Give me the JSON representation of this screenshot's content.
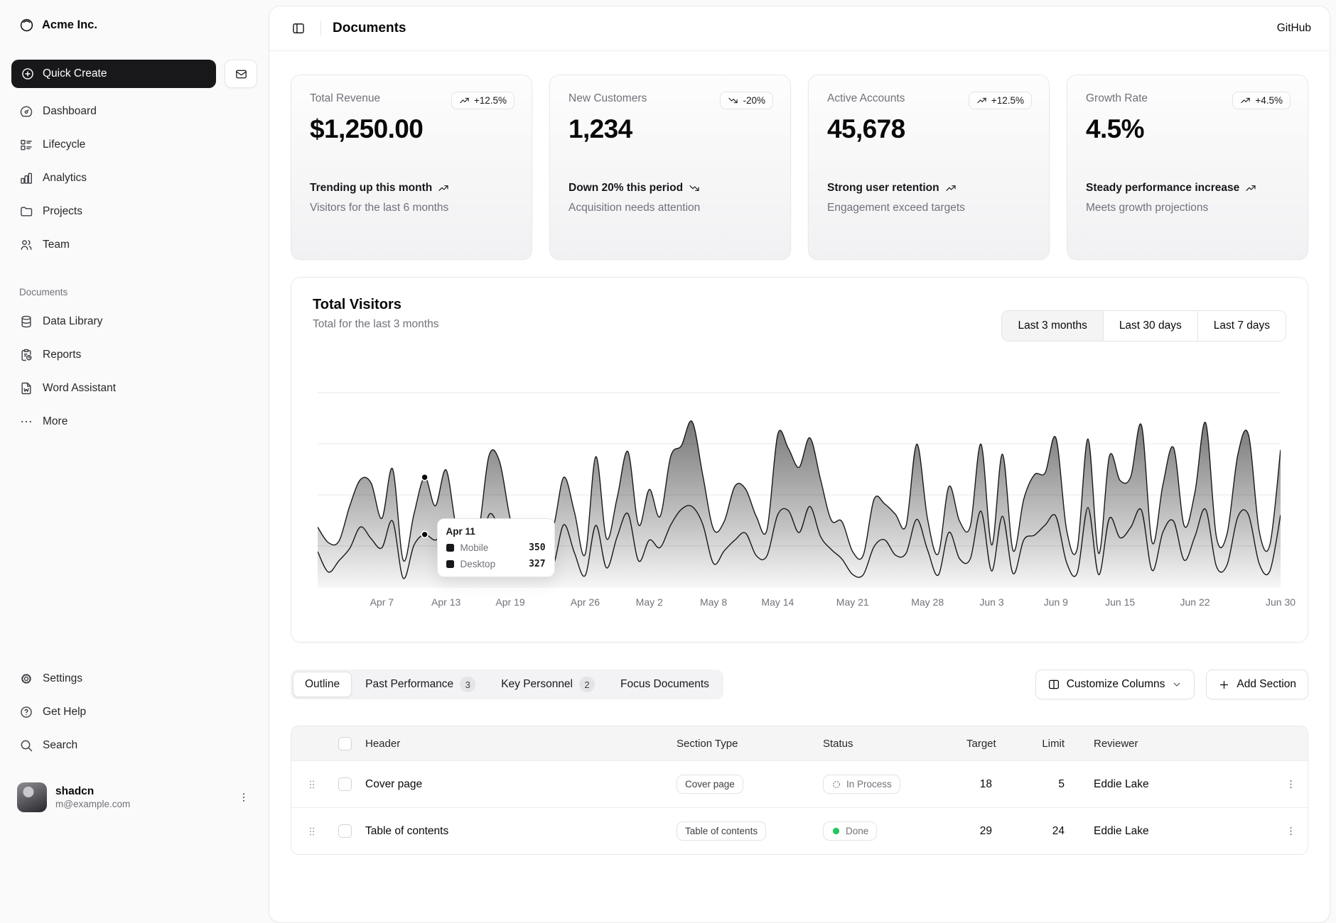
{
  "brand": {
    "name": "Acme Inc."
  },
  "sidebar": {
    "quick_create": "Quick Create",
    "nav": [
      {
        "label": "Dashboard"
      },
      {
        "label": "Lifecycle"
      },
      {
        "label": "Analytics"
      },
      {
        "label": "Projects"
      },
      {
        "label": "Team"
      }
    ],
    "documents": {
      "heading": "Documents",
      "items": [
        {
          "label": "Data Library"
        },
        {
          "label": "Reports"
        },
        {
          "label": "Word Assistant"
        },
        {
          "label": "More"
        }
      ]
    },
    "footer_nav": [
      {
        "label": "Settings"
      },
      {
        "label": "Get Help"
      },
      {
        "label": "Search"
      }
    ],
    "user": {
      "name": "shadcn",
      "email": "m@example.com"
    }
  },
  "header": {
    "title": "Documents",
    "github_label": "GitHub"
  },
  "stat_cards": [
    {
      "title": "Total Revenue",
      "value": "$1,250.00",
      "badge": "+12.5%",
      "trend": "up",
      "footer_title": "Trending up this month",
      "footer_desc": "Visitors for the last 6 months"
    },
    {
      "title": "New Customers",
      "value": "1,234",
      "badge": "-20%",
      "trend": "down",
      "footer_title": "Down 20% this period",
      "footer_desc": "Acquisition needs attention"
    },
    {
      "title": "Active Accounts",
      "value": "45,678",
      "badge": "+12.5%",
      "trend": "up",
      "footer_title": "Strong user retention",
      "footer_desc": "Engagement exceed targets"
    },
    {
      "title": "Growth Rate",
      "value": "4.5%",
      "badge": "+4.5%",
      "trend": "up",
      "footer_title": "Steady performance increase",
      "footer_desc": "Meets growth projections"
    }
  ],
  "visitors": {
    "title": "Total Visitors",
    "subtitle": "Total for the last 3 months",
    "ranges": [
      {
        "label": "Last 3 months",
        "active": true
      },
      {
        "label": "Last 30 days",
        "active": false
      },
      {
        "label": "Last 7 days",
        "active": false
      }
    ]
  },
  "chart_data": {
    "type": "area",
    "stacked": true,
    "title": "Total Visitors",
    "x_range": [
      "Apr 1",
      "Jun 30"
    ],
    "ylim": [
      0,
      1230
    ],
    "grid": "horizontal",
    "highlight_index": 10,
    "x_ticks": [
      {
        "index": 6,
        "label": "Apr 7"
      },
      {
        "index": 12,
        "label": "Apr 13"
      },
      {
        "index": 18,
        "label": "Apr 19"
      },
      {
        "index": 25,
        "label": "Apr 26"
      },
      {
        "index": 31,
        "label": "May 2"
      },
      {
        "index": 37,
        "label": "May 8"
      },
      {
        "index": 43,
        "label": "May 14"
      },
      {
        "index": 50,
        "label": "May 21"
      },
      {
        "index": 57,
        "label": "May 28"
      },
      {
        "index": 63,
        "label": "Jun 3"
      },
      {
        "index": 69,
        "label": "Jun 9"
      },
      {
        "index": 75,
        "label": "Jun 15"
      },
      {
        "index": 82,
        "label": "Jun 22"
      },
      {
        "index": 90,
        "label": "Jun 30"
      }
    ],
    "series": [
      {
        "name": "Desktop",
        "values": [
          222,
          97,
          167,
          242,
          373,
          301,
          245,
          409,
          59,
          261,
          327,
          292,
          342,
          137,
          120,
          138,
          446,
          364,
          243,
          89,
          137,
          224,
          138,
          387,
          215,
          75,
          383,
          122,
          315,
          454,
          165,
          293,
          247,
          385,
          481,
          498,
          388,
          149,
          227,
          293,
          335,
          197,
          197,
          448,
          473,
          338,
          499,
          315,
          235,
          177,
          82,
          81,
          252,
          294,
          201,
          213,
          420,
          233,
          78,
          340,
          178,
          178,
          470,
          103,
          439,
          88,
          294,
          323,
          385,
          438,
          155,
          92,
          492,
          81,
          426,
          307,
          371,
          475,
          107,
          341,
          408,
          169,
          317,
          480,
          132,
          141,
          434,
          448,
          149,
          103,
          446
        ]
      },
      {
        "name": "Mobile",
        "values": [
          150,
          180,
          120,
          260,
          290,
          340,
          180,
          320,
          110,
          190,
          350,
          210,
          380,
          220,
          170,
          190,
          360,
          410,
          180,
          150,
          200,
          170,
          230,
          290,
          250,
          130,
          420,
          180,
          240,
          380,
          220,
          310,
          190,
          420,
          390,
          520,
          300,
          210,
          180,
          330,
          270,
          240,
          160,
          490,
          380,
          400,
          420,
          350,
          180,
          230,
          140,
          120,
          290,
          220,
          250,
          170,
          460,
          190,
          130,
          280,
          230,
          200,
          410,
          160,
          380,
          140,
          250,
          370,
          320,
          480,
          200,
          150,
          420,
          130,
          380,
          350,
          310,
          520,
          170,
          290,
          450,
          210,
          270,
          530,
          180,
          190,
          380,
          490,
          200,
          160,
          400
        ]
      }
    ],
    "tooltip": {
      "date": "Apr 11",
      "rows": [
        {
          "label": "Mobile",
          "value": "350"
        },
        {
          "label": "Desktop",
          "value": "327"
        }
      ]
    }
  },
  "section_tabs": [
    {
      "label": "Outline",
      "active": true
    },
    {
      "label": "Past Performance",
      "count": "3"
    },
    {
      "label": "Key Personnel",
      "count": "2"
    },
    {
      "label": "Focus Documents"
    }
  ],
  "table_actions": {
    "customize": "Customize Columns",
    "add": "Add Section"
  },
  "table": {
    "columns": [
      "Header",
      "Section Type",
      "Status",
      "Target",
      "Limit",
      "Reviewer"
    ],
    "rows": [
      {
        "header": "Cover page",
        "type": "Cover page",
        "status": "In Process",
        "target": "18",
        "limit": "5",
        "reviewer": "Eddie Lake"
      },
      {
        "header": "Table of contents",
        "type": "Table of contents",
        "status": "Done",
        "target": "29",
        "limit": "24",
        "reviewer": "Eddie Lake"
      }
    ]
  }
}
